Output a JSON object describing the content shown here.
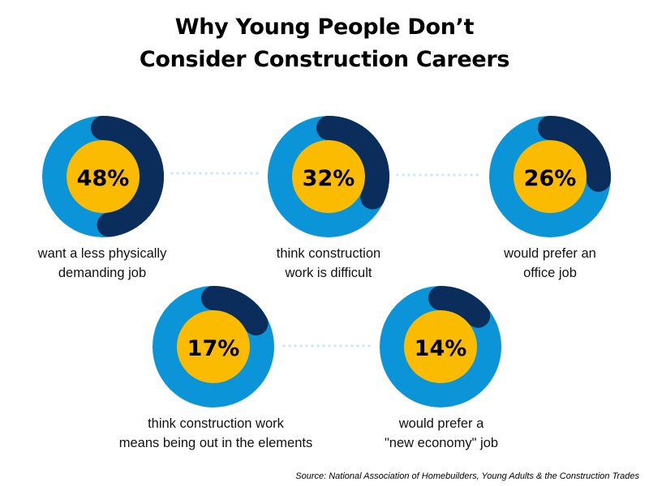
{
  "title": {
    "line1": "Why Young People Don’t",
    "line2": "Consider Construction Careers"
  },
  "colors": {
    "outer_ring": "#0b95d8",
    "highlight_arc": "#0b2d5c",
    "inner_disc": "#fbbb00",
    "connector_dots": "#c9e6f6"
  },
  "chart_data": {
    "type": "pie",
    "items": [
      {
        "value": 48,
        "label": "48%",
        "caption": [
          "want a less physically",
          "demanding job"
        ]
      },
      {
        "value": 32,
        "label": "32%",
        "caption": [
          "think construction",
          "work is difficult"
        ]
      },
      {
        "value": 26,
        "label": "26%",
        "caption": [
          "would prefer an",
          "office job"
        ]
      },
      {
        "value": 17,
        "label": "17%",
        "caption": [
          "think construction work",
          "means being out in the elements"
        ]
      },
      {
        "value": 14,
        "label": "14%",
        "caption": [
          "would prefer a",
          "\"new economy\" job"
        ]
      }
    ]
  },
  "source": "Source: National Association of Homebuilders, Young Adults & the Construction Trades"
}
